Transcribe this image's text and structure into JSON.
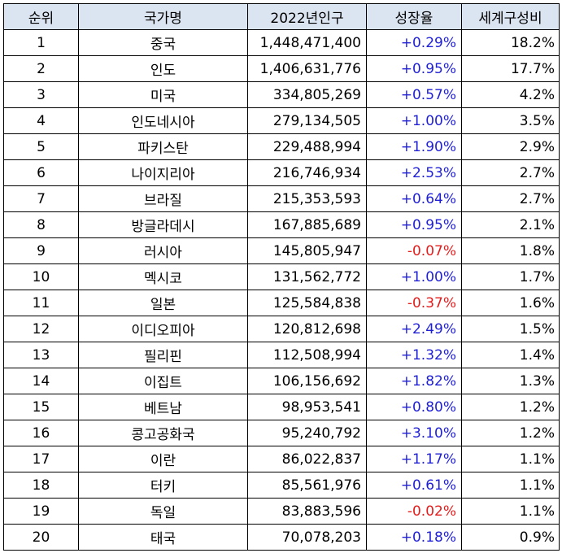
{
  "table": {
    "headers": [
      "순위",
      "국가명",
      "2022년인구",
      "성장율",
      "세계구성비"
    ],
    "rows": [
      {
        "rank": "1",
        "country": "중국",
        "population": "1,448,471,400",
        "growth": "+0.29%",
        "share": "18.2%"
      },
      {
        "rank": "2",
        "country": "인도",
        "population": "1,406,631,776",
        "growth": "+0.95%",
        "share": "17.7%"
      },
      {
        "rank": "3",
        "country": "미국",
        "population": "334,805,269",
        "growth": "+0.57%",
        "share": "4.2%"
      },
      {
        "rank": "4",
        "country": "인도네시아",
        "population": "279,134,505",
        "growth": "+1.00%",
        "share": "3.5%"
      },
      {
        "rank": "5",
        "country": "파키스탄",
        "population": "229,488,994",
        "growth": "+1.90%",
        "share": "2.9%"
      },
      {
        "rank": "6",
        "country": "나이지리아",
        "population": "216,746,934",
        "growth": "+2.53%",
        "share": "2.7%"
      },
      {
        "rank": "7",
        "country": "브라질",
        "population": "215,353,593",
        "growth": "+0.64%",
        "share": "2.7%"
      },
      {
        "rank": "8",
        "country": "방글라데시",
        "population": "167,885,689",
        "growth": "+0.95%",
        "share": "2.1%"
      },
      {
        "rank": "9",
        "country": "러시아",
        "population": "145,805,947",
        "growth": "-0.07%",
        "share": "1.8%"
      },
      {
        "rank": "10",
        "country": "멕시코",
        "population": "131,562,772",
        "growth": "+1.00%",
        "share": "1.7%"
      },
      {
        "rank": "11",
        "country": "일본",
        "population": "125,584,838",
        "growth": "-0.37%",
        "share": "1.6%"
      },
      {
        "rank": "12",
        "country": "이디오피아",
        "population": "120,812,698",
        "growth": "+2.49%",
        "share": "1.5%"
      },
      {
        "rank": "13",
        "country": "필리핀",
        "population": "112,508,994",
        "growth": "+1.32%",
        "share": "1.4%"
      },
      {
        "rank": "14",
        "country": "이집트",
        "population": "106,156,692",
        "growth": "+1.82%",
        "share": "1.3%"
      },
      {
        "rank": "15",
        "country": "베트남",
        "population": "98,953,541",
        "growth": "+0.80%",
        "share": "1.2%"
      },
      {
        "rank": "16",
        "country": "콩고공화국",
        "population": "95,240,792",
        "growth": "+3.10%",
        "share": "1.2%"
      },
      {
        "rank": "17",
        "country": "이란",
        "population": "86,022,837",
        "growth": "+1.17%",
        "share": "1.1%"
      },
      {
        "rank": "18",
        "country": "터키",
        "population": "85,561,976",
        "growth": "+0.61%",
        "share": "1.1%"
      },
      {
        "rank": "19",
        "country": "독일",
        "population": "83,883,596",
        "growth": "-0.02%",
        "share": "1.1%"
      },
      {
        "rank": "20",
        "country": "태국",
        "population": "70,078,203",
        "growth": "+0.18%",
        "share": "0.9%"
      }
    ]
  },
  "colors": {
    "header_bg": "#dbe4f1",
    "positive_growth": "#1f1fd6",
    "negative_growth": "#e41c1c",
    "border": "#000000"
  }
}
